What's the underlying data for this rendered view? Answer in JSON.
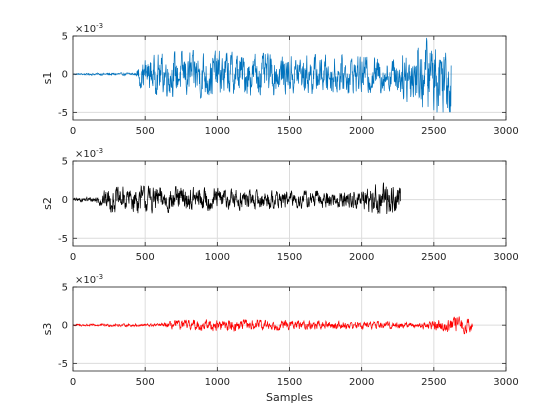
{
  "chart_data": [
    {
      "type": "line",
      "ylabel": "s1",
      "xlabel": "",
      "exponent_label": "×10^-3",
      "xlim": [
        0,
        3000
      ],
      "ylim": [
        -0.006,
        0.005
      ],
      "xticks": [
        0,
        500,
        1000,
        1500,
        2000,
        2500,
        3000
      ],
      "xtick_labels": [
        "0",
        "500",
        "1000",
        "1500",
        "2000",
        "2500",
        "3000"
      ],
      "yticks": [
        -0.005,
        0,
        0.005
      ],
      "ytick_labels": [
        "-5",
        "0",
        "5"
      ],
      "grid": true,
      "color": "#0072BD",
      "series": [
        {
          "x_end": 2620,
          "envelope": [
            [
              0,
              0.0001
            ],
            [
              440,
              0.0002
            ],
            [
              460,
              0.0018
            ],
            [
              600,
              0.0028
            ],
            [
              900,
              0.0032
            ],
            [
              1200,
              0.0028
            ],
            [
              1600,
              0.0026
            ],
            [
              2000,
              0.0025
            ],
            [
              2250,
              0.0024
            ],
            [
              2300,
              0.0035
            ],
            [
              2400,
              0.0045
            ],
            [
              2500,
              0.005
            ],
            [
              2620,
              0.005
            ]
          ]
        }
      ]
    },
    {
      "type": "line",
      "ylabel": "s2",
      "xlabel": "",
      "exponent_label": "×10^-3",
      "xlim": [
        0,
        3000
      ],
      "ylim": [
        -0.006,
        0.005
      ],
      "xticks": [
        0,
        500,
        1000,
        1500,
        2000,
        2500,
        3000
      ],
      "xtick_labels": [
        "0",
        "500",
        "1000",
        "1500",
        "2000",
        "2500",
        "3000"
      ],
      "yticks": [
        -0.005,
        0,
        0.005
      ],
      "ytick_labels": [
        "-5",
        "0",
        "5"
      ],
      "grid": true,
      "color": "#000000",
      "series": [
        {
          "x_end": 2270,
          "envelope": [
            [
              0,
              0.0002
            ],
            [
              150,
              0.0004
            ],
            [
              250,
              0.0016
            ],
            [
              500,
              0.0018
            ],
            [
              900,
              0.0016
            ],
            [
              1500,
              0.0011
            ],
            [
              1900,
              0.0012
            ],
            [
              2050,
              0.0016
            ],
            [
              2150,
              0.0024
            ],
            [
              2270,
              0.002
            ]
          ]
        }
      ]
    },
    {
      "type": "line",
      "ylabel": "s3",
      "xlabel": "Samples",
      "exponent_label": "×10^-3",
      "xlim": [
        0,
        3000
      ],
      "ylim": [
        -0.006,
        0.005
      ],
      "xticks": [
        0,
        500,
        1000,
        1500,
        2000,
        2500,
        3000
      ],
      "xtick_labels": [
        "0",
        "500",
        "1000",
        "1500",
        "2000",
        "2500",
        "3000"
      ],
      "yticks": [
        -0.005,
        0,
        0.005
      ],
      "ytick_labels": [
        "-5",
        "0",
        "5"
      ],
      "grid": true,
      "color": "#FF0000",
      "series": [
        {
          "x_end": 2770,
          "envelope": [
            [
              0,
              0.00015
            ],
            [
              600,
              0.0002
            ],
            [
              700,
              0.0006
            ],
            [
              1000,
              0.0008
            ],
            [
              1500,
              0.0006
            ],
            [
              2000,
              0.0005
            ],
            [
              2400,
              0.0004
            ],
            [
              2550,
              0.0008
            ],
            [
              2700,
              0.0012
            ],
            [
              2770,
              0.0008
            ]
          ]
        }
      ]
    }
  ]
}
